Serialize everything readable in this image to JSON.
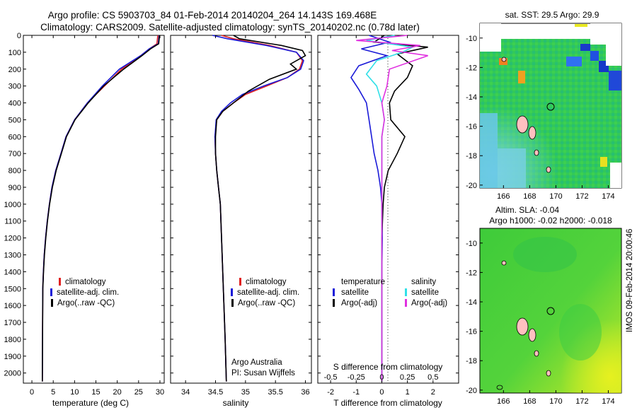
{
  "title_line1": "Argo profile: CS 5903703_84 01-Feb-2014 20140204_264 14.143S 169.468E",
  "title_line2": "Climatology: CARS2009. Satellite-adjusted climatology: synTS_20140202.nc (0.78d later)",
  "credit_line1": "Argo Australia",
  "credit_line2": "PI: Susan Wijffels",
  "side_stamp": "IMOS 09-Feb-2014 20:00:46",
  "legend_temp": [
    "climatology",
    "satellite-adj. clim.",
    "Argo(..raw -QC)"
  ],
  "legend_sal": [
    "climatology",
    "satellite-adj. clim.",
    "Argo(..raw -QC)"
  ],
  "legend_diff": {
    "temp_head": "temperature",
    "sal_head": "salinity",
    "temp_items": [
      "satellite",
      "Argo(-adj)"
    ],
    "sal_items": [
      "satellite",
      "Argo(-adj)"
    ]
  },
  "map_top_title": "sat. SST: 29.5 Argo: 29.9",
  "map_bottom_title1": "Altim. SLA: -0.04",
  "map_bottom_title2": "Argo h1000: -0.02 h2000: -0.018",
  "colors": {
    "climatology": "#e02020",
    "satellite": "#1a1ad8",
    "argo": "#000000",
    "sal_satellite": "#30e0e8",
    "sal_argo": "#e030e0"
  },
  "chart_data": [
    {
      "type": "line",
      "xlabel": "temperature (deg C)",
      "ylabel": "",
      "xlim": [
        -2,
        31
      ],
      "ylim": [
        2060,
        0
      ],
      "xticks": [
        "0",
        "5",
        "10",
        "15",
        "20",
        "25",
        "30"
      ],
      "xtick_values": [
        0,
        5,
        10,
        15,
        20,
        25,
        30
      ],
      "yticks": [
        "0",
        "100",
        "200",
        "300",
        "400",
        "500",
        "600",
        "700",
        "800",
        "900",
        "1000",
        "1100",
        "1200",
        "1300",
        "1400",
        "1500",
        "1600",
        "1700",
        "1800",
        "1900",
        "2000"
      ],
      "ytick_values": [
        0,
        100,
        200,
        300,
        400,
        500,
        600,
        700,
        800,
        900,
        1000,
        1100,
        1200,
        1300,
        1400,
        1500,
        1600,
        1700,
        1800,
        1900,
        2000
      ],
      "series": [
        {
          "name": "climatology",
          "color": "#e02020",
          "x": [
            29.5,
            29.3,
            27.5,
            25.5,
            21,
            17,
            13,
            10,
            8,
            6.8,
            5.6,
            4.7,
            4.1,
            3.6,
            3.2,
            2.9,
            2.7,
            2.55,
            2.45
          ],
          "y": [
            0,
            50,
            80,
            120,
            200,
            300,
            400,
            500,
            600,
            700,
            800,
            900,
            1000,
            1100,
            1200,
            1300,
            1400,
            1500,
            2050
          ]
        },
        {
          "name": "satellite-adj. clim.",
          "color": "#1a1ad8",
          "x": [
            29.8,
            29.6,
            27.5,
            25.5,
            20.5,
            16.5,
            13,
            10,
            8,
            6.8,
            5.6,
            4.7,
            4.1,
            3.6,
            3.2,
            2.9,
            2.7,
            2.55,
            2.45
          ],
          "y": [
            0,
            50,
            80,
            120,
            200,
            300,
            400,
            500,
            600,
            700,
            800,
            900,
            1000,
            1100,
            1200,
            1300,
            1400,
            1500,
            2050
          ]
        },
        {
          "name": "Argo(..raw -QC)",
          "color": "#000000",
          "x": [
            29.9,
            29.7,
            27.8,
            25.8,
            21.5,
            16.8,
            13.2,
            10.1,
            8.1,
            6.9,
            5.7,
            4.8,
            4.15,
            3.65,
            3.25,
            2.95,
            2.72,
            2.56,
            2.45
          ],
          "y": [
            0,
            50,
            80,
            120,
            200,
            300,
            400,
            500,
            600,
            700,
            800,
            900,
            1000,
            1100,
            1200,
            1300,
            1400,
            1500,
            2050
          ]
        }
      ]
    },
    {
      "type": "line",
      "xlabel": "salinity",
      "ylabel": "",
      "xlim": [
        33.75,
        36.1
      ],
      "ylim": [
        2060,
        0
      ],
      "xticks": [
        "34",
        "34.5",
        "35",
        "35.5",
        "36"
      ],
      "xtick_values": [
        34,
        34.5,
        35,
        35.5,
        36
      ],
      "series": [
        {
          "name": "climatology",
          "color": "#e02020",
          "x": [
            34.6,
            34.8,
            35.4,
            35.85,
            35.95,
            35.9,
            35.7,
            35.35,
            35.0,
            34.8,
            34.62,
            34.52,
            34.49,
            34.5,
            34.52,
            34.55,
            34.58,
            34.6,
            34.62,
            34.64,
            34.66,
            34.68
          ],
          "y": [
            0,
            20,
            60,
            100,
            150,
            200,
            250,
            300,
            350,
            400,
            450,
            500,
            600,
            700,
            800,
            900,
            1000,
            1200,
            1400,
            1600,
            1800,
            2050
          ]
        },
        {
          "name": "satellite-adj. clim.",
          "color": "#1a1ad8",
          "x": [
            34.45,
            34.7,
            35.35,
            35.85,
            35.97,
            35.92,
            35.7,
            35.3,
            34.95,
            34.75,
            34.6,
            34.51,
            34.49,
            34.5,
            34.52,
            34.55,
            34.58,
            34.6,
            34.62,
            34.64,
            34.66,
            34.68
          ],
          "y": [
            0,
            20,
            60,
            100,
            150,
            200,
            250,
            300,
            350,
            400,
            450,
            500,
            600,
            700,
            800,
            900,
            1000,
            1200,
            1400,
            1600,
            1800,
            2050
          ]
        },
        {
          "name": "Argo(..raw -QC)",
          "color": "#000000",
          "x": [
            34.8,
            34.9,
            35.6,
            35.95,
            36.0,
            35.75,
            35.85,
            35.4,
            35.05,
            34.8,
            34.62,
            34.52,
            34.5,
            34.5,
            34.52,
            34.55,
            34.58,
            34.6,
            34.62,
            34.64,
            34.66,
            34.68
          ],
          "y": [
            0,
            20,
            60,
            90,
            120,
            170,
            200,
            260,
            330,
            400,
            450,
            500,
            600,
            700,
            800,
            900,
            1000,
            1200,
            1400,
            1600,
            1800,
            2050
          ]
        }
      ]
    },
    {
      "type": "line",
      "xlabel": "T difference from climatology",
      "xlabel2": "S difference from climatology",
      "xlim": [
        -2.5,
        3.0
      ],
      "ylim": [
        2060,
        0
      ],
      "xticks": [
        "-2",
        "-1",
        "0",
        "1",
        "2"
      ],
      "xtick_values": [
        -2,
        -1,
        0,
        1,
        2
      ],
      "sticks": [
        "-0.5",
        "-0.25",
        "0",
        "0.25",
        "0.5"
      ],
      "stick_positions": [
        -2,
        -1,
        0,
        1,
        2
      ],
      "series": [
        {
          "name": "temperature satellite",
          "color": "#1a1ad8",
          "x": [
            -0.5,
            0.3,
            -0.8,
            0.2,
            -0.9,
            -1.2,
            -0.9,
            -0.6,
            -0.5,
            -0.4,
            -0.3,
            -0.15,
            -0.05,
            0,
            0.02,
            0,
            0,
            0,
            0
          ],
          "y": [
            0,
            40,
            80,
            120,
            180,
            250,
            320,
            400,
            500,
            600,
            700,
            800,
            900,
            1000,
            1200,
            1400,
            1600,
            1800,
            2050
          ]
        },
        {
          "name": "temperature Argo(-adj)",
          "color": "#000000",
          "x": [
            0.1,
            -0.3,
            1.8,
            0.6,
            1.2,
            1.0,
            0.5,
            0.3,
            0.35,
            0.9,
            0.6,
            0.25,
            0.1,
            0.05,
            0,
            0,
            0,
            0,
            0
          ],
          "y": [
            0,
            40,
            70,
            110,
            180,
            250,
            330,
            400,
            500,
            600,
            700,
            800,
            900,
            1000,
            1200,
            1400,
            1600,
            1800,
            2050
          ]
        },
        {
          "name": "salinity satellite",
          "color": "#30e0e8",
          "x": [
            0.5,
            -0.6,
            1.2,
            0.8,
            -0.2,
            -0.6,
            -0.2,
            0.0,
            0.1,
            0.0,
            0,
            0,
            0,
            0,
            0,
            0,
            0
          ],
          "y": [
            0,
            30,
            70,
            100,
            150,
            230,
            300,
            400,
            500,
            600,
            800,
            1000,
            1200,
            1400,
            1600,
            1800,
            2050
          ]
        },
        {
          "name": "salinity Argo(-adj)",
          "color": "#e030e0",
          "x": [
            1.0,
            -1.0,
            1.5,
            0.4,
            1.8,
            0.3,
            0.2,
            0.0,
            0.1,
            0.0,
            0,
            0,
            0,
            0,
            0,
            0,
            0
          ],
          "y": [
            0,
            30,
            60,
            90,
            120,
            200,
            300,
            400,
            500,
            600,
            800,
            1000,
            1200,
            1400,
            1600,
            1800,
            2050
          ]
        }
      ]
    }
  ],
  "maps": {
    "top": {
      "xticks": [
        "166",
        "168",
        "170",
        "172",
        "174"
      ],
      "yticks": [
        "-10",
        "-12",
        "-14",
        "-16",
        "-18",
        "-20"
      ]
    },
    "bottom": {
      "xticks": [
        "166",
        "168",
        "170",
        "172",
        "174"
      ],
      "yticks": [
        "-10",
        "-12",
        "-14",
        "-16",
        "-18",
        "-20"
      ]
    }
  }
}
